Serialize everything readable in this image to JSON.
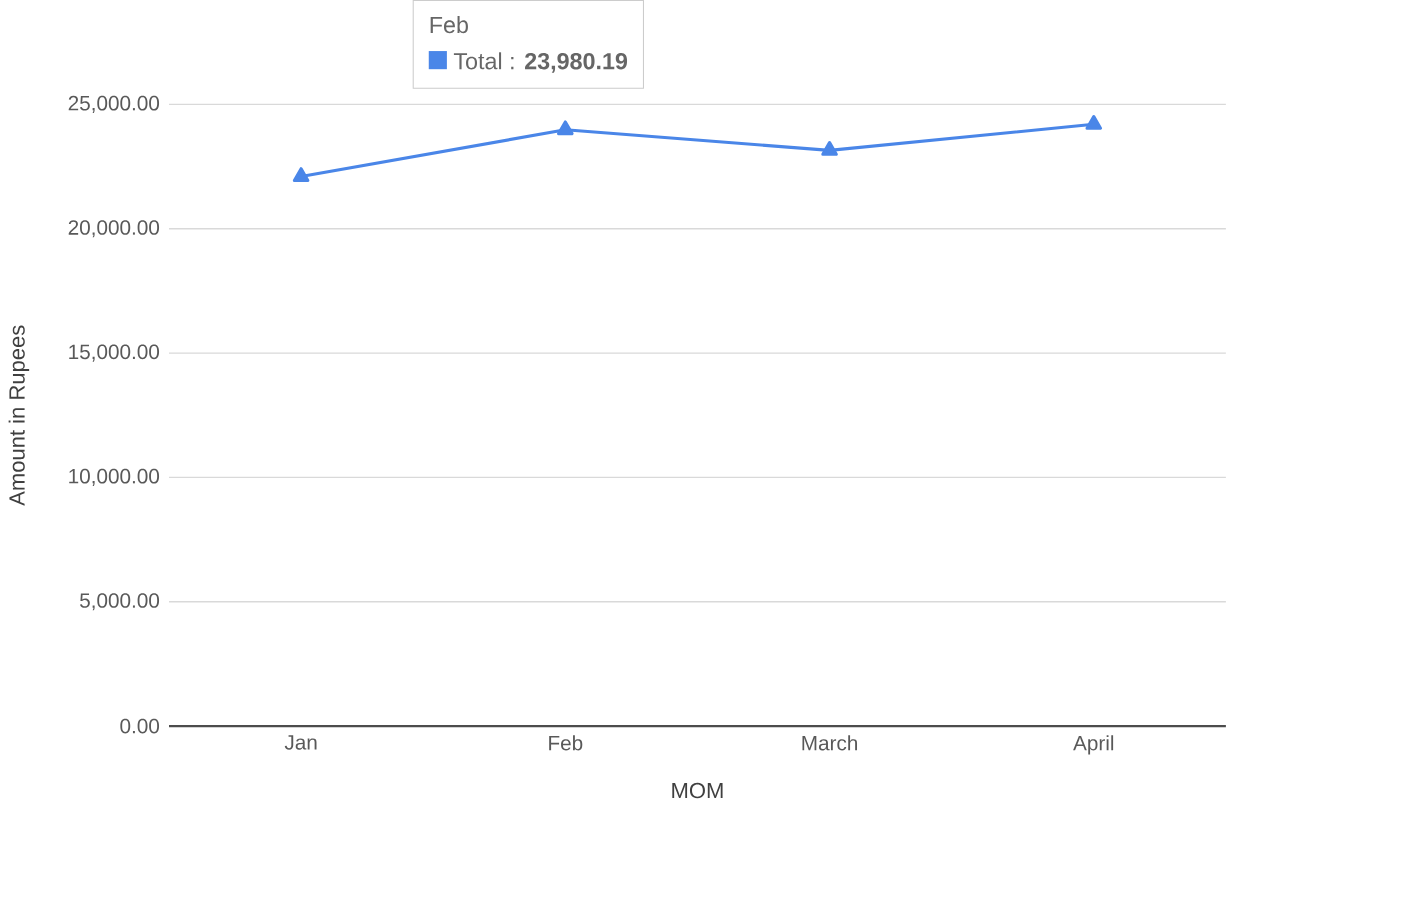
{
  "chart_data": {
    "type": "line",
    "xlabel": "MOM",
    "ylabel": "Amount in Rupees",
    "categories": [
      "Jan",
      "Feb",
      "March",
      "April"
    ],
    "series": [
      {
        "color": "#4a86e8",
        "values": [
          22100,
          23980.19,
          23150,
          24200
        ]
      }
    ],
    "annotations": [
      "Feb",
      "Total : **23,980.19**"
    ],
    "ylim": [
      0,
      25000
    ],
    "yticks": [
      {
        "value": 0,
        "label": "0.00"
      },
      {
        "value": 5000,
        "label": "5,000.00"
      },
      {
        "value": 10000,
        "label": "10,000.00"
      },
      {
        "value": 15000,
        "label": "15,000.00"
      },
      {
        "value": 20000,
        "label": "20,000.00"
      },
      {
        "value": 25000,
        "label": "25,000.00"
      }
    ],
    "grid": "y",
    "marker": "triangle",
    "line_style": "solid"
  }
}
